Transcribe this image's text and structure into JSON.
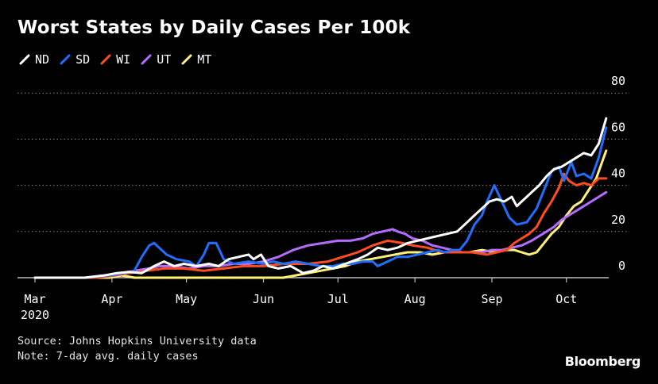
{
  "title": "Worst States by Daily Cases Per 100k",
  "source": "Source: Johns Hopkins University data",
  "note": "Note: 7-day avg. daily cases",
  "brand": "Bloomberg",
  "chart_data": {
    "type": "line",
    "title": "Worst States by Daily Cases Per 100k",
    "x_unit": "days since 2020-03-01",
    "x_ticks": [
      {
        "label": "Mar",
        "label2": "2020",
        "x": 0
      },
      {
        "label": "Apr",
        "x": 31
      },
      {
        "label": "May",
        "x": 61
      },
      {
        "label": "Jun",
        "x": 92
      },
      {
        "label": "Jul",
        "x": 122
      },
      {
        "label": "Aug",
        "x": 153
      },
      {
        "label": "Sep",
        "x": 184
      },
      {
        "label": "Oct",
        "x": 214
      }
    ],
    "y_ticks": [
      0,
      20,
      40,
      60,
      80
    ],
    "ylim": [
      0,
      80
    ],
    "xlim": [
      0,
      230
    ],
    "grid": "horizontal dotted",
    "legend_position": "top-left",
    "series": [
      {
        "name": "ND",
        "color": "#ffffff",
        "points": [
          [
            0,
            0
          ],
          [
            20,
            0
          ],
          [
            28,
            1
          ],
          [
            33,
            2
          ],
          [
            38,
            2.5
          ],
          [
            43,
            2
          ],
          [
            48,
            5
          ],
          [
            52,
            7
          ],
          [
            56,
            5
          ],
          [
            60,
            6
          ],
          [
            65,
            5
          ],
          [
            70,
            6
          ],
          [
            74,
            5
          ],
          [
            78,
            8
          ],
          [
            82,
            9
          ],
          [
            86,
            10
          ],
          [
            88,
            8
          ],
          [
            91,
            10
          ],
          [
            94,
            5
          ],
          [
            98,
            4
          ],
          [
            103,
            5
          ],
          [
            108,
            2
          ],
          [
            112,
            3
          ],
          [
            116,
            5
          ],
          [
            120,
            4
          ],
          [
            125,
            6
          ],
          [
            130,
            8
          ],
          [
            134,
            10
          ],
          [
            138,
            13
          ],
          [
            142,
            12
          ],
          [
            146,
            13
          ],
          [
            150,
            15
          ],
          [
            154,
            16
          ],
          [
            158,
            17
          ],
          [
            162,
            18
          ],
          [
            166,
            19
          ],
          [
            170,
            20
          ],
          [
            174,
            24
          ],
          [
            177,
            27
          ],
          [
            180,
            30
          ],
          [
            183,
            33
          ],
          [
            186,
            34
          ],
          [
            189,
            33
          ],
          [
            192,
            35
          ],
          [
            194,
            31
          ],
          [
            197,
            34
          ],
          [
            200,
            37
          ],
          [
            203,
            40
          ],
          [
            206,
            44
          ],
          [
            209,
            47
          ],
          [
            212,
            48
          ],
          [
            215,
            50
          ],
          [
            218,
            52
          ],
          [
            221,
            54
          ],
          [
            224,
            53
          ],
          [
            227,
            58
          ],
          [
            230,
            69
          ]
        ]
      },
      {
        "name": "SD",
        "color": "#1f6fff",
        "points": [
          [
            0,
            0
          ],
          [
            20,
            0
          ],
          [
            30,
            1
          ],
          [
            36,
            2
          ],
          [
            40,
            3
          ],
          [
            43,
            9
          ],
          [
            46,
            14
          ],
          [
            48,
            15
          ],
          [
            50,
            13
          ],
          [
            53,
            10
          ],
          [
            57,
            8
          ],
          [
            62,
            7
          ],
          [
            65,
            5
          ],
          [
            68,
            10
          ],
          [
            70,
            15
          ],
          [
            73,
            15
          ],
          [
            76,
            8
          ],
          [
            80,
            6
          ],
          [
            86,
            7
          ],
          [
            92,
            6
          ],
          [
            96,
            7
          ],
          [
            100,
            6
          ],
          [
            105,
            7
          ],
          [
            110,
            6
          ],
          [
            115,
            5
          ],
          [
            120,
            5
          ],
          [
            124,
            6
          ],
          [
            128,
            6
          ],
          [
            132,
            7
          ],
          [
            136,
            7
          ],
          [
            138,
            5
          ],
          [
            142,
            7
          ],
          [
            146,
            9
          ],
          [
            150,
            9
          ],
          [
            154,
            10
          ],
          [
            158,
            11
          ],
          [
            162,
            12
          ],
          [
            165,
            11
          ],
          [
            168,
            12
          ],
          [
            171,
            12
          ],
          [
            174,
            16
          ],
          [
            177,
            23
          ],
          [
            180,
            27
          ],
          [
            182,
            33
          ],
          [
            185,
            40
          ],
          [
            188,
            33
          ],
          [
            191,
            26
          ],
          [
            194,
            23
          ],
          [
            198,
            24
          ],
          [
            202,
            30
          ],
          [
            205,
            38
          ],
          [
            208,
            46
          ],
          [
            211,
            48
          ],
          [
            213,
            42
          ],
          [
            216,
            50
          ],
          [
            218,
            44
          ],
          [
            221,
            45
          ],
          [
            224,
            43
          ],
          [
            227,
            52
          ],
          [
            230,
            65
          ]
        ]
      },
      {
        "name": "WI",
        "color": "#ff4c1f",
        "points": [
          [
            0,
            0
          ],
          [
            25,
            0
          ],
          [
            32,
            1
          ],
          [
            38,
            2
          ],
          [
            45,
            3
          ],
          [
            52,
            4
          ],
          [
            60,
            4
          ],
          [
            68,
            3
          ],
          [
            76,
            4
          ],
          [
            84,
            5
          ],
          [
            92,
            5
          ],
          [
            100,
            6
          ],
          [
            110,
            6
          ],
          [
            118,
            7
          ],
          [
            124,
            9
          ],
          [
            130,
            11
          ],
          [
            136,
            14
          ],
          [
            142,
            16
          ],
          [
            148,
            15
          ],
          [
            152,
            14
          ],
          [
            158,
            13
          ],
          [
            164,
            11
          ],
          [
            170,
            11
          ],
          [
            176,
            11
          ],
          [
            182,
            10
          ],
          [
            186,
            11
          ],
          [
            190,
            12
          ],
          [
            193,
            15
          ],
          [
            196,
            17
          ],
          [
            199,
            19
          ],
          [
            202,
            22
          ],
          [
            205,
            28
          ],
          [
            208,
            33
          ],
          [
            211,
            39
          ],
          [
            213,
            45
          ],
          [
            215,
            42
          ],
          [
            218,
            40
          ],
          [
            221,
            41
          ],
          [
            224,
            40
          ],
          [
            227,
            43
          ],
          [
            230,
            43
          ]
        ]
      },
      {
        "name": "UT",
        "color": "#b56cff",
        "points": [
          [
            0,
            0
          ],
          [
            20,
            0
          ],
          [
            28,
            1
          ],
          [
            35,
            2
          ],
          [
            40,
            3
          ],
          [
            46,
            4
          ],
          [
            50,
            5
          ],
          [
            55,
            5
          ],
          [
            62,
            4
          ],
          [
            68,
            5
          ],
          [
            74,
            5
          ],
          [
            80,
            6
          ],
          [
            86,
            6
          ],
          [
            92,
            7
          ],
          [
            98,
            9
          ],
          [
            104,
            12
          ],
          [
            110,
            14
          ],
          [
            116,
            15
          ],
          [
            122,
            16
          ],
          [
            127,
            16
          ],
          [
            132,
            17
          ],
          [
            136,
            19
          ],
          [
            140,
            20
          ],
          [
            144,
            21
          ],
          [
            146,
            20
          ],
          [
            149,
            19
          ],
          [
            152,
            17
          ],
          [
            156,
            16
          ],
          [
            160,
            14
          ],
          [
            164,
            13
          ],
          [
            168,
            12
          ],
          [
            172,
            11
          ],
          [
            176,
            11
          ],
          [
            180,
            11
          ],
          [
            184,
            12
          ],
          [
            188,
            12
          ],
          [
            192,
            13
          ],
          [
            196,
            14
          ],
          [
            200,
            16
          ],
          [
            203,
            18
          ],
          [
            206,
            20
          ],
          [
            209,
            22
          ],
          [
            212,
            25
          ],
          [
            215,
            27
          ],
          [
            218,
            29
          ],
          [
            221,
            31
          ],
          [
            224,
            33
          ],
          [
            227,
            35
          ],
          [
            230,
            37
          ]
        ]
      },
      {
        "name": "MT",
        "color": "#fff176",
        "points": [
          [
            0,
            0
          ],
          [
            30,
            0
          ],
          [
            35,
            1
          ],
          [
            40,
            0
          ],
          [
            50,
            0
          ],
          [
            60,
            0
          ],
          [
            70,
            0
          ],
          [
            80,
            0
          ],
          [
            90,
            0
          ],
          [
            100,
            0
          ],
          [
            105,
            1
          ],
          [
            110,
            2
          ],
          [
            115,
            3
          ],
          [
            120,
            4
          ],
          [
            125,
            5
          ],
          [
            130,
            7
          ],
          [
            135,
            8
          ],
          [
            140,
            9
          ],
          [
            145,
            10
          ],
          [
            150,
            11
          ],
          [
            155,
            11
          ],
          [
            160,
            10
          ],
          [
            165,
            11
          ],
          [
            170,
            11
          ],
          [
            175,
            11
          ],
          [
            180,
            12
          ],
          [
            185,
            11
          ],
          [
            190,
            12
          ],
          [
            193,
            12
          ],
          [
            196,
            11
          ],
          [
            199,
            10
          ],
          [
            202,
            11
          ],
          [
            205,
            15
          ],
          [
            208,
            19
          ],
          [
            211,
            22
          ],
          [
            214,
            27
          ],
          [
            217,
            31
          ],
          [
            220,
            33
          ],
          [
            223,
            38
          ],
          [
            226,
            43
          ],
          [
            229,
            52
          ],
          [
            230,
            55
          ]
        ]
      }
    ]
  }
}
